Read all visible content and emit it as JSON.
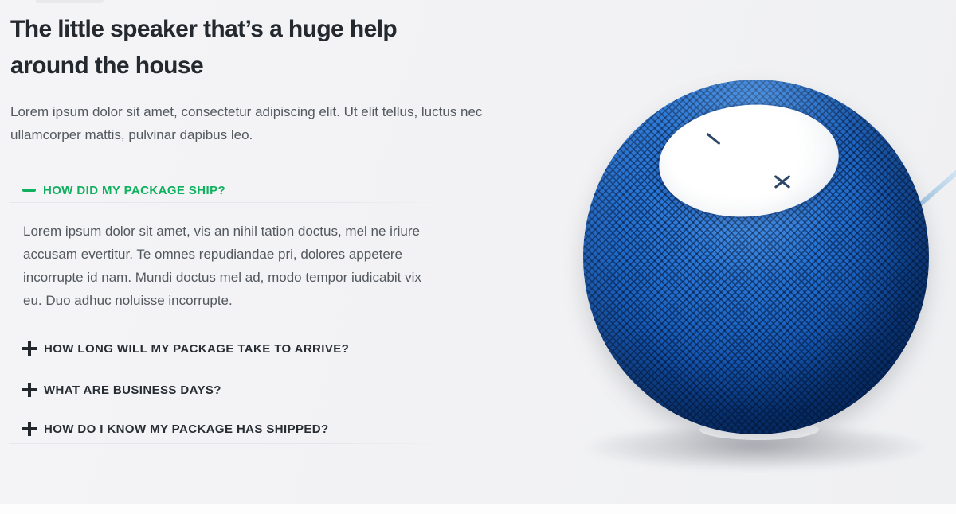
{
  "header": {
    "title": "The little speaker that’s a huge help around the house",
    "intro": "Lorem ipsum dolor sit amet, consectetur adipiscing elit. Ut elit tellus, luctus nec ullamcorper mattis, pulvinar dapibus leo."
  },
  "faq": {
    "items": [
      {
        "question": "HOW DID MY PACKAGE SHIP?",
        "expanded": true,
        "icon": "minus-icon",
        "answer": "Lorem ipsum dolor sit amet, vis an nihil tation doctus, mel ne iriure accusam evertitur. Te omnes repudiandae pri, dolores appetere incorrupte id nam. Mundi doctus mel ad, modo tempor iudicabit vix eu. Duo adhuc noluisse incorrupte."
      },
      {
        "question": "HOW LONG WILL MY PACKAGE TAKE TO ARRIVE?",
        "expanded": false,
        "icon": "plus-icon"
      },
      {
        "question": "WHAT ARE BUSINESS DAYS?",
        "expanded": false,
        "icon": "plus-icon"
      },
      {
        "question": "HOW DO I KNOW MY PACKAGE HAS SHIPPED?",
        "expanded": false,
        "icon": "plus-icon"
      }
    ]
  },
  "product_image": {
    "subject": "blue-mesh-smart-speaker",
    "top_marks": [
      "volume-down-mark",
      "volume-up-mark"
    ]
  },
  "colors": {
    "accent_green": "#0fb05e",
    "heading_text": "#23292f",
    "body_text": "#54595f",
    "question_text": "#272d33",
    "speaker_blue": "#2673d4",
    "cable_blue": "#b9d6ea",
    "background": "#f2f3f5",
    "bottom_strip": "#fdfdfe"
  }
}
